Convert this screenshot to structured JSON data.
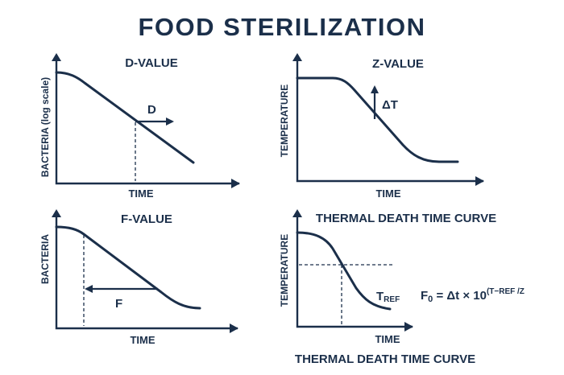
{
  "title": "FOOD STERILIZATION",
  "panels": {
    "d_value": {
      "title": "D-VALUE",
      "xlabel": "TIME",
      "ylabel": "BACTERIA (log scale)",
      "annotation": "D"
    },
    "z_value": {
      "title": "Z-VALUE",
      "xlabel": "TIME",
      "ylabel": "TEMPERATURE",
      "annotation": "ΔT"
    },
    "f_value": {
      "title": "F-VALUE",
      "xlabel": "TIME",
      "ylabel": "BACTERIA",
      "annotation": "F"
    },
    "thermal_death": {
      "title": "THERMAL DEATH TIME CURVE",
      "xlabel": "TIME",
      "ylabel": "TEMPERATURE",
      "annotation_main": "T",
      "annotation_sub": "REF",
      "caption": "THERMAL DEATH TIME CURVE",
      "formula": {
        "lhs": "F",
        "lhs_sub": "0",
        "rhs": " = Δt × 10",
        "exponent": "(T−REF /Z"
      }
    }
  },
  "colors": {
    "ink": "#1b2f4a",
    "background": "#ffffff"
  }
}
